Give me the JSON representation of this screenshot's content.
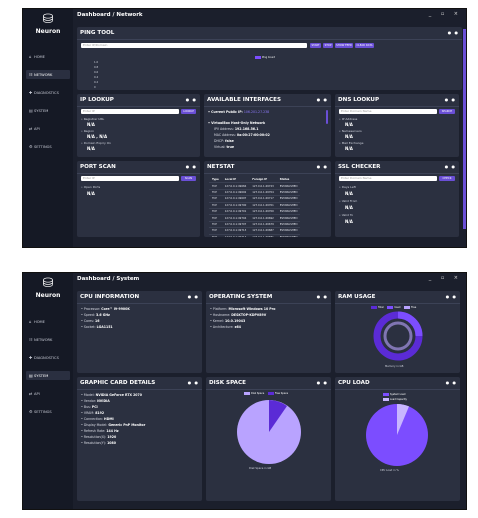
{
  "app": {
    "name": "Neuron",
    "window_controls": "_ ▫ ×"
  },
  "nav": [
    "HOME",
    "NETWORK",
    "DIAGNOSTICS",
    "SYSTEM",
    "API",
    "SETTINGS"
  ],
  "screen1": {
    "breadcrumb": "Dashboard /  Network",
    "ping": {
      "title": "PING TOOL",
      "placeholder": "Enter IP/Domain",
      "buttons": [
        "START",
        "STOP",
        "SHOW FEED",
        "CLEAR DATA"
      ],
      "legend": "Ping Count",
      "y_ticks": [
        "1.0",
        "0.8",
        "0.6",
        "0.4",
        "0.2",
        "0"
      ]
    },
    "ip_lookup": {
      "title": "IP LOOKUP",
      "placeholder": "Enter IP",
      "button": "LOOKUP",
      "fields": [
        {
          "label": "• Registrar URL",
          "value": "N/A"
        },
        {
          "label": "• Region",
          "value": "N/A , N/A"
        },
        {
          "label": "• Domain Expiry On",
          "value": "N/A"
        }
      ]
    },
    "interfaces": {
      "title": "AVAILABLE INTERFACES",
      "public_ip_label": "• Current Public IP:",
      "public_ip": "106.201.27.238",
      "adapter": "• VirtualBox Host-Only Network",
      "rows": [
        {
          "k": "IPV Address:",
          "v": "192.168.56.1"
        },
        {
          "k": "MAC Address:",
          "v": "0a:00:27:00:00:02"
        },
        {
          "k": "DHCP:",
          "v": "false"
        },
        {
          "k": "Virtual:",
          "v": "true"
        }
      ]
    },
    "dns": {
      "title": "DNS LOOKUP",
      "placeholder": "Enter Domain Name",
      "button": "SEARCH",
      "fields": [
        {
          "label": "• IP Address",
          "value": "N/A"
        },
        {
          "label": "• Nameservers",
          "value": "N/A"
        },
        {
          "label": "• Mail Exchange",
          "value": "N/A"
        }
      ]
    },
    "port_scan": {
      "title": "PORT SCAN",
      "placeholder": "Enter IP",
      "button": "SCAN",
      "field_label": "• Open Ports",
      "field_value": "N/A"
    },
    "netstat": {
      "title": "NETSTAT",
      "headers": [
        "Type",
        "Local IP",
        "Foreign IP",
        "Status"
      ],
      "rows": [
        [
          "TCP",
          "127.0.0.1:49684",
          "127.0.0.1:49723",
          "ESTABLISHED"
        ],
        [
          "TCP",
          "127.0.0.1:49692",
          "127.0.0.1:49704",
          "ESTABLISHED"
        ],
        [
          "TCP",
          "127.0.0.1:49697",
          "127.0.0.1:49717",
          "ESTABLISHED"
        ],
        [
          "TCP",
          "127.0.0.1:49700",
          "127.0.0.1:49701",
          "ESTABLISHED"
        ],
        [
          "TCP",
          "127.0.0.1:49701",
          "127.0.0.1:49700",
          "ESTABLISHED"
        ],
        [
          "TCP",
          "127.0.0.1:49704",
          "127.0.0.1:49692",
          "ESTABLISHED"
        ],
        [
          "TCP",
          "127.0.0.1:49707",
          "127.0.0.1:49679",
          "ESTABLISHED"
        ],
        [
          "TCP",
          "127.0.0.1:49713",
          "127.0.0.1:49687",
          "ESTABLISHED"
        ],
        [
          "TCP",
          "127.0.0.1:49714",
          "127.0.0.1:49681",
          "ESTABLISHED"
        ]
      ]
    },
    "ssl": {
      "title": "SSL CHECKER",
      "placeholder": "Enter Domain Name",
      "button": "CHECK",
      "fields": [
        {
          "label": "• Days Left",
          "value": "N/A"
        },
        {
          "label": "• Valid From",
          "value": "N/A"
        },
        {
          "label": "• Valid To",
          "value": "N/A"
        }
      ]
    }
  },
  "screen2": {
    "breadcrumb": "Dashboard /  System",
    "cpu": {
      "title": "CPU INFORMATION",
      "rows": [
        {
          "k": "• Processor:",
          "v": "Core™ i9-9900K"
        },
        {
          "k": "• Speed:",
          "v": "3.6 GHz"
        },
        {
          "k": "• Cores:",
          "v": "16"
        },
        {
          "k": "• Socket:",
          "v": "LGA1151"
        }
      ]
    },
    "os": {
      "title": "OPERATING SYSTEM",
      "rows": [
        {
          "k": "• Platform:",
          "v": "Microsoft Windows 10 Pro"
        },
        {
          "k": "• Hostname:",
          "v": "DESKTOP-KDPV89V"
        },
        {
          "k": "• Kernel:",
          "v": "10.0.19043"
        },
        {
          "k": "• Architecture:",
          "v": "x64"
        }
      ]
    },
    "ram": {
      "title": "RAM USAGE",
      "legend": [
        "Total",
        "Used",
        "Free"
      ],
      "caption": "Memory in GB",
      "colors": [
        "#5b2bd6",
        "#7c4dff",
        "#b9a3ff"
      ]
    },
    "gpu": {
      "title": "GRAPHIC CARD DETAILS",
      "rows": [
        {
          "k": "• Model:",
          "v": "NVIDIA GeForce RTX 2070"
        },
        {
          "k": "• Vendor:",
          "v": "NVIDIA"
        },
        {
          "k": "• Bus:",
          "v": "PCI"
        },
        {
          "k": "• VRAM:",
          "v": "8192"
        },
        {
          "k": "• Connection:",
          "v": "HDMI"
        },
        {
          "k": "• Display Model:",
          "v": "Generic PnP Monitor"
        },
        {
          "k": "• Refresh Rate:",
          "v": "144 Hz"
        },
        {
          "k": "• Resolution(X):",
          "v": "1920"
        },
        {
          "k": "• Resolution(Y):",
          "v": "1080"
        }
      ]
    },
    "disk": {
      "title": "DISK SPACE",
      "legend": [
        "Disk Space",
        "Free Space"
      ],
      "caption": "Disk Space in GB",
      "colors": [
        "#b9a3ff",
        "#5b2bd6"
      ]
    },
    "cpu_load": {
      "title": "CPU LOAD",
      "legend": [
        "System Load",
        "Load Capacity"
      ],
      "caption": "CPU Load in %",
      "colors": [
        "#7c4dff",
        "#c8b6ff"
      ]
    }
  }
}
